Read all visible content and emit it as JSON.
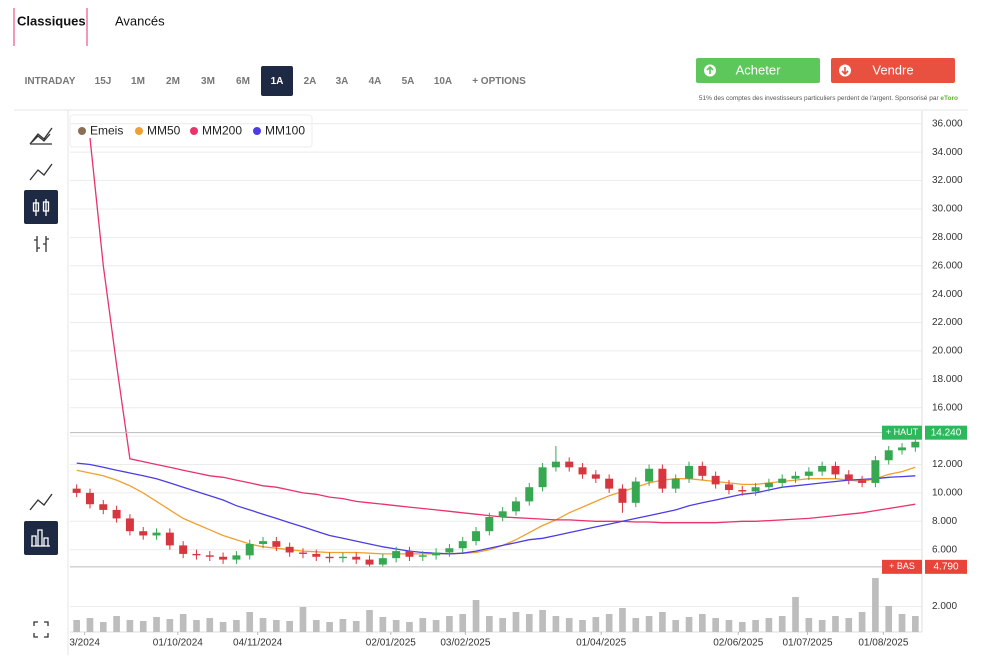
{
  "tabs": [
    "Classiques",
    "Avancés"
  ],
  "active_tab": "Classiques",
  "ranges": [
    "INTRADAY",
    "15J",
    "1M",
    "2M",
    "3M",
    "6M",
    "1A",
    "2A",
    "3A",
    "4A",
    "5A",
    "10A",
    "+ OPTIONS"
  ],
  "selected_range": "1A",
  "buttons": {
    "buy": "Acheter",
    "sell": "Vendre"
  },
  "disclaimer": "51% des comptes des investisseurs particuliers perdent de l'argent. Sponsorisé par",
  "sponsor": "eToro",
  "chart_data": {
    "type": "candlestick",
    "up_color": "#36a852",
    "down_color": "#d7363f",
    "xlim": [
      0,
      64
    ],
    "xticks": [
      {
        "value": 1.1,
        "label": "3/2024"
      },
      {
        "value": 8.1,
        "label": "01/10/2024"
      },
      {
        "value": 14.1,
        "label": "04/11/2024"
      },
      {
        "value": 24.1,
        "label": "02/01/2025"
      },
      {
        "value": 29.7,
        "label": "03/02/2025"
      },
      {
        "value": 39.9,
        "label": "01/04/2025"
      },
      {
        "value": 50.2,
        "label": "02/06/2025"
      },
      {
        "value": 55.4,
        "label": "01/07/2025"
      },
      {
        "value": 61.1,
        "label": "01/08/2025"
      }
    ],
    "ylim": [
      0.2,
      36.9
    ],
    "yticks": [
      {
        "value": 2,
        "label": "2.000"
      },
      {
        "value": 6,
        "label": "6.000"
      },
      {
        "value": 8,
        "label": "8.000"
      },
      {
        "value": 10,
        "label": "10.000"
      },
      {
        "value": 12,
        "label": "12.000"
      },
      {
        "value": 14,
        "label": "14.000"
      },
      {
        "value": 16,
        "label": "16.000"
      },
      {
        "value": 18,
        "label": "18.000"
      },
      {
        "value": 20,
        "label": "20.000"
      },
      {
        "value": 22,
        "label": "22.000"
      },
      {
        "value": 24,
        "label": "24.000"
      },
      {
        "value": 26,
        "label": "26.000"
      },
      {
        "value": 28,
        "label": "28.000"
      },
      {
        "value": 30,
        "label": "30.000"
      },
      {
        "value": 32,
        "label": "32.000"
      },
      {
        "value": 34,
        "label": "34.000"
      },
      {
        "value": 36,
        "label": "36.000"
      }
    ],
    "grid": true,
    "series": [
      {
        "name": "Emeis",
        "color": "#8a6f55",
        "type": "candlestick",
        "open": [
          10.3,
          10.0,
          9.2,
          8.8,
          8.2,
          7.3,
          7.0,
          7.2,
          6.3,
          5.7,
          5.6,
          5.5,
          5.3,
          5.6,
          6.4,
          6.6,
          6.2,
          5.8,
          5.7,
          5.5,
          5.4,
          5.5,
          5.3,
          4.95,
          5.4,
          5.9,
          5.5,
          5.6,
          5.8,
          6.1,
          6.6,
          7.3,
          8.3,
          8.7,
          9.4,
          10.4,
          11.8,
          12.2,
          11.8,
          11.3,
          11.0,
          10.3,
          9.3,
          10.8,
          11.7,
          10.3,
          11.0,
          11.9,
          11.2,
          10.6,
          10.2,
          10.1,
          10.4,
          10.7,
          11.0,
          11.2,
          11.5,
          11.9,
          11.3,
          10.9,
          10.7,
          12.3,
          13.0,
          13.2
        ],
        "high": [
          10.6,
          10.3,
          9.5,
          9.1,
          8.5,
          7.6,
          7.5,
          7.5,
          6.6,
          6.0,
          5.9,
          5.8,
          5.9,
          6.7,
          6.9,
          6.9,
          6.5,
          6.1,
          6.0,
          5.8,
          5.8,
          5.8,
          5.6,
          5.7,
          6.2,
          6.2,
          5.9,
          6.1,
          6.4,
          6.9,
          7.6,
          8.6,
          9.0,
          9.7,
          10.7,
          12.1,
          13.3,
          12.5,
          12.1,
          11.6,
          11.3,
          10.6,
          11.1,
          12.0,
          12.0,
          11.3,
          12.2,
          12.2,
          11.5,
          10.9,
          10.5,
          10.7,
          11.0,
          11.3,
          11.5,
          11.8,
          12.2,
          12.2,
          11.6,
          11.2,
          12.6,
          13.3,
          13.5,
          14.24
        ],
        "low": [
          9.7,
          8.9,
          8.5,
          7.9,
          7.0,
          6.7,
          6.7,
          6.0,
          5.4,
          5.3,
          5.2,
          5.0,
          5.0,
          5.3,
          6.1,
          5.9,
          5.5,
          5.4,
          5.2,
          5.1,
          5.1,
          5.0,
          4.79,
          4.8,
          5.1,
          5.2,
          5.2,
          5.3,
          5.5,
          5.8,
          6.3,
          7.0,
          8.0,
          8.4,
          9.1,
          10.1,
          11.5,
          11.5,
          11.0,
          10.7,
          10.0,
          8.6,
          9.0,
          10.5,
          10.0,
          10.0,
          10.7,
          10.9,
          10.3,
          9.9,
          9.8,
          9.8,
          10.1,
          10.4,
          10.7,
          10.9,
          11.2,
          11.0,
          10.6,
          10.4,
          10.4,
          12.0,
          12.7,
          12.9
        ],
        "close": [
          10.0,
          9.2,
          8.8,
          8.2,
          7.3,
          7.0,
          7.2,
          6.3,
          5.7,
          5.6,
          5.5,
          5.3,
          5.6,
          6.4,
          6.6,
          6.2,
          5.8,
          5.7,
          5.5,
          5.4,
          5.5,
          5.3,
          4.95,
          5.4,
          5.9,
          5.5,
          5.6,
          5.8,
          6.1,
          6.6,
          7.3,
          8.3,
          8.7,
          9.4,
          10.4,
          11.8,
          12.2,
          11.8,
          11.3,
          11.0,
          10.3,
          9.3,
          10.8,
          11.7,
          10.3,
          11.0,
          11.9,
          11.2,
          10.6,
          10.2,
          10.1,
          10.4,
          10.7,
          11.0,
          11.2,
          11.5,
          11.9,
          11.3,
          10.9,
          10.7,
          12.3,
          13.0,
          13.2,
          13.6
        ]
      },
      {
        "name": "MM50",
        "color": "#f0a030",
        "type": "line",
        "values": [
          11.6,
          11.4,
          11.2,
          10.9,
          10.5,
          10.0,
          9.4,
          8.8,
          8.2,
          7.8,
          7.4,
          7.0,
          6.7,
          6.4,
          6.2,
          6.1,
          6.0,
          5.9,
          5.85,
          5.8,
          5.8,
          5.8,
          5.75,
          5.7,
          5.7,
          5.7,
          5.7,
          5.7,
          5.7,
          5.75,
          5.8,
          6.0,
          6.3,
          6.7,
          7.2,
          7.7,
          8.1,
          8.6,
          9.0,
          9.4,
          9.8,
          10.1,
          10.4,
          10.7,
          10.9,
          11.0,
          11.0,
          10.9,
          10.8,
          10.7,
          10.6,
          10.6,
          10.7,
          10.8,
          10.9,
          11.0,
          11.0,
          11.0,
          10.9,
          10.8,
          11.0,
          11.3,
          11.5,
          11.8
        ]
      },
      {
        "name": "MM200",
        "color": "#e8336b",
        "type": "line",
        "values": [
          null,
          35.0,
          26.0,
          19.0,
          12.4,
          12.2,
          12.0,
          11.8,
          11.6,
          11.4,
          11.2,
          11.1,
          10.9,
          10.7,
          10.5,
          10.4,
          10.2,
          10.0,
          9.9,
          9.7,
          9.6,
          9.4,
          9.3,
          9.2,
          9.1,
          9.0,
          8.9,
          8.8,
          8.7,
          8.6,
          8.5,
          8.4,
          8.3,
          8.25,
          8.2,
          8.15,
          8.1,
          8.1,
          8.05,
          8.0,
          8.0,
          8.0,
          7.95,
          7.95,
          7.9,
          7.9,
          7.9,
          7.9,
          7.9,
          7.95,
          8.0,
          8.0,
          8.05,
          8.1,
          8.15,
          8.2,
          8.3,
          8.4,
          8.5,
          8.6,
          8.75,
          8.9,
          9.05,
          9.2
        ]
      },
      {
        "name": "MM100",
        "color": "#4b3ce6",
        "type": "line",
        "values": [
          12.1,
          12.0,
          11.8,
          11.6,
          11.4,
          11.2,
          11.0,
          10.7,
          10.4,
          10.1,
          9.8,
          9.5,
          9.1,
          8.8,
          8.5,
          8.2,
          7.9,
          7.6,
          7.3,
          7.0,
          6.8,
          6.6,
          6.4,
          6.2,
          6.05,
          5.9,
          5.8,
          5.75,
          5.7,
          5.75,
          5.9,
          6.1,
          6.3,
          6.5,
          6.7,
          6.8,
          7.0,
          7.2,
          7.4,
          7.6,
          7.8,
          8.0,
          8.2,
          8.4,
          8.6,
          8.8,
          9.1,
          9.3,
          9.5,
          9.7,
          9.9,
          10.0,
          10.2,
          10.4,
          10.5,
          10.6,
          10.7,
          10.8,
          10.9,
          10.95,
          11.0,
          11.1,
          11.15,
          11.2
        ]
      }
    ],
    "volume": {
      "color": "#bdbdbd",
      "ylim": [
        0,
        100
      ],
      "values": [
        12,
        14,
        10,
        16,
        12,
        11,
        15,
        13,
        18,
        12,
        14,
        10,
        12,
        20,
        14,
        12,
        11,
        25,
        12,
        10,
        13,
        11,
        22,
        15,
        12,
        10,
        14,
        12,
        16,
        18,
        32,
        16,
        14,
        20,
        18,
        22,
        16,
        14,
        12,
        15,
        18,
        24,
        14,
        16,
        20,
        12,
        15,
        18,
        14,
        12,
        10,
        12,
        14,
        16,
        35,
        14,
        12,
        16,
        14,
        20,
        54,
        26,
        18,
        16
      ]
    },
    "annotations": [
      {
        "label": "+ HAUT",
        "value": 14.24,
        "value_label": "14.240",
        "color": "#2eb85c"
      },
      {
        "label": "+ BAS",
        "value": 4.79,
        "value_label": "4.790",
        "color": "#e8443a"
      }
    ]
  }
}
